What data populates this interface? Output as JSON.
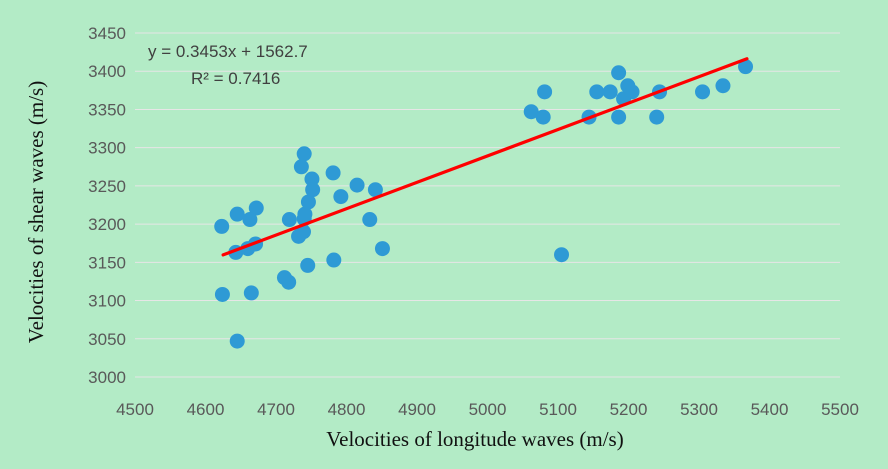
{
  "chart_data": {
    "type": "scatter",
    "xlabel": "Velocities of longitude waves (m/s)",
    "ylabel": "Velocities of shear waves (m/s)",
    "xlim": [
      4500,
      5500
    ],
    "ylim": [
      3000,
      3450
    ],
    "x_ticks": [
      "4500",
      "4600",
      "4700",
      "4800",
      "4900",
      "5000",
      "5100",
      "5200",
      "5300",
      "5400",
      "5500"
    ],
    "y_ticks": [
      "3000",
      "3050",
      "3100",
      "3150",
      "3200",
      "3250",
      "3300",
      "3350",
      "3400",
      "3450"
    ],
    "grid": "horizontal",
    "point_color": "#2e9ad5",
    "trendline_color": "#ff0000",
    "trendline": {
      "equation": "y = 0.3453x + 1562.7",
      "r_squared": "R² = 0.7416",
      "slope": 0.3453,
      "intercept": 1562.7,
      "x_range": [
        4625,
        5368
      ]
    },
    "points": [
      {
        "x": 4623,
        "y": 3197
      },
      {
        "x": 4624,
        "y": 3108
      },
      {
        "x": 4645,
        "y": 3047
      },
      {
        "x": 4643,
        "y": 3163
      },
      {
        "x": 4645,
        "y": 3213
      },
      {
        "x": 4660,
        "y": 3168
      },
      {
        "x": 4663,
        "y": 3206
      },
      {
        "x": 4665,
        "y": 3110
      },
      {
        "x": 4671,
        "y": 3174
      },
      {
        "x": 4672,
        "y": 3221
      },
      {
        "x": 4712,
        "y": 3130
      },
      {
        "x": 4718,
        "y": 3124
      },
      {
        "x": 4719,
        "y": 3206
      },
      {
        "x": 4732,
        "y": 3184
      },
      {
        "x": 4736,
        "y": 3275
      },
      {
        "x": 4739,
        "y": 3190
      },
      {
        "x": 4740,
        "y": 3292
      },
      {
        "x": 4740,
        "y": 3207
      },
      {
        "x": 4741,
        "y": 3213
      },
      {
        "x": 4745,
        "y": 3146
      },
      {
        "x": 4746,
        "y": 3229
      },
      {
        "x": 4751,
        "y": 3259
      },
      {
        "x": 4752,
        "y": 3245
      },
      {
        "x": 4781,
        "y": 3267
      },
      {
        "x": 4782,
        "y": 3153
      },
      {
        "x": 4792,
        "y": 3236
      },
      {
        "x": 4815,
        "y": 3251
      },
      {
        "x": 4833,
        "y": 3206
      },
      {
        "x": 4841,
        "y": 3245
      },
      {
        "x": 4851,
        "y": 3168
      },
      {
        "x": 5062,
        "y": 3347
      },
      {
        "x": 5079,
        "y": 3340
      },
      {
        "x": 5081,
        "y": 3373
      },
      {
        "x": 5105,
        "y": 3160
      },
      {
        "x": 5144,
        "y": 3340
      },
      {
        "x": 5155,
        "y": 3373
      },
      {
        "x": 5174,
        "y": 3373
      },
      {
        "x": 5186,
        "y": 3340
      },
      {
        "x": 5186,
        "y": 3398
      },
      {
        "x": 5193,
        "y": 3364
      },
      {
        "x": 5199,
        "y": 3381
      },
      {
        "x": 5205,
        "y": 3373
      },
      {
        "x": 5240,
        "y": 3340
      },
      {
        "x": 5244,
        "y": 3373
      },
      {
        "x": 5305,
        "y": 3373
      },
      {
        "x": 5334,
        "y": 3381
      },
      {
        "x": 5366,
        "y": 3406
      }
    ]
  }
}
